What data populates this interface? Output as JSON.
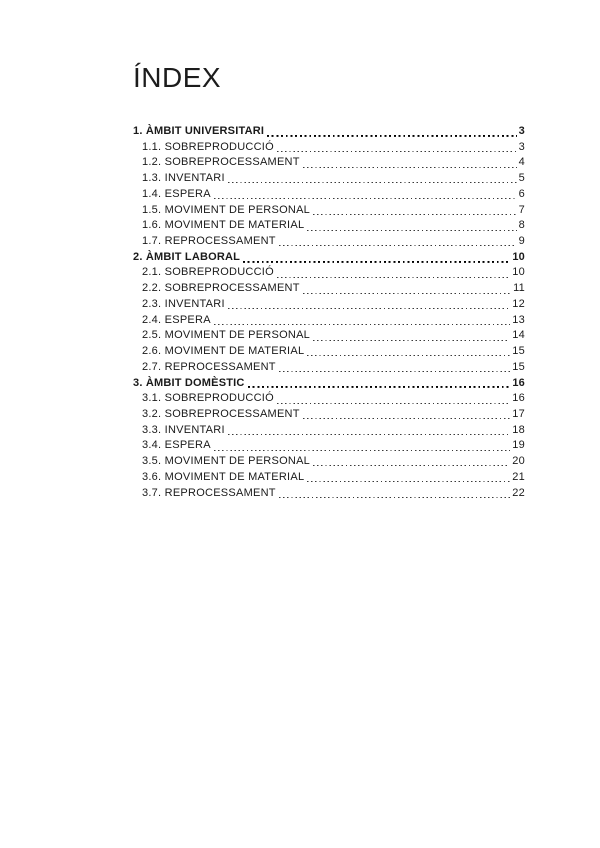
{
  "document": {
    "title": "ÍNDEX",
    "text_color": "#1a1a1a",
    "background_color": "#ffffff"
  },
  "toc": {
    "entries": [
      {
        "label": "1. ÀMBIT UNIVERSITARI",
        "page": "3",
        "level": 1
      },
      {
        "label": "1.1. SOBREPRODUCCIÓ",
        "page": "3",
        "level": 2
      },
      {
        "label": "1.2. SOBREPROCESSAMENT",
        "page": "4",
        "level": 2
      },
      {
        "label": "1.3. INVENTARI",
        "page": "5",
        "level": 2
      },
      {
        "label": "1.4. ESPERA",
        "page": "6",
        "level": 2
      },
      {
        "label": "1.5. MOVIMENT DE PERSONAL",
        "page": "7",
        "level": 2
      },
      {
        "label": "1.6. MOVIMENT DE MATERIAL",
        "page": "8",
        "level": 2
      },
      {
        "label": "1.7. REPROCESSAMENT",
        "page": "9",
        "level": 2
      },
      {
        "label": "2. ÀMBIT LABORAL",
        "page": "10",
        "level": 1
      },
      {
        "label": "2.1. SOBREPRODUCCIÓ",
        "page": "10",
        "level": 2
      },
      {
        "label": "2.2. SOBREPROCESSAMENT",
        "page": "11",
        "level": 2
      },
      {
        "label": "2.3. INVENTARI",
        "page": "12",
        "level": 2
      },
      {
        "label": "2.4. ESPERA",
        "page": "13",
        "level": 2
      },
      {
        "label": "2.5. MOVIMENT DE PERSONAL",
        "page": "14",
        "level": 2
      },
      {
        "label": "2.6. MOVIMENT DE MATERIAL",
        "page": "15",
        "level": 2
      },
      {
        "label": "2.7. REPROCESSAMENT",
        "page": "15",
        "level": 2
      },
      {
        "label": "3. ÀMBIT DOMÈSTIC",
        "page": "16",
        "level": 1
      },
      {
        "label": "3.1. SOBREPRODUCCIÓ",
        "page": "16",
        "level": 2
      },
      {
        "label": "3.2. SOBREPROCESSAMENT",
        "page": "17",
        "level": 2
      },
      {
        "label": "3.3. INVENTARI",
        "page": "18",
        "level": 2
      },
      {
        "label": "3.4. ESPERA",
        "page": "19",
        "level": 2
      },
      {
        "label": "3.5. MOVIMENT DE PERSONAL",
        "page": "20",
        "level": 2
      },
      {
        "label": "3.6. MOVIMENT DE MATERIAL",
        "page": "21",
        "level": 2
      },
      {
        "label": "3.7. REPROCESSAMENT",
        "page": "22",
        "level": 2
      }
    ]
  }
}
